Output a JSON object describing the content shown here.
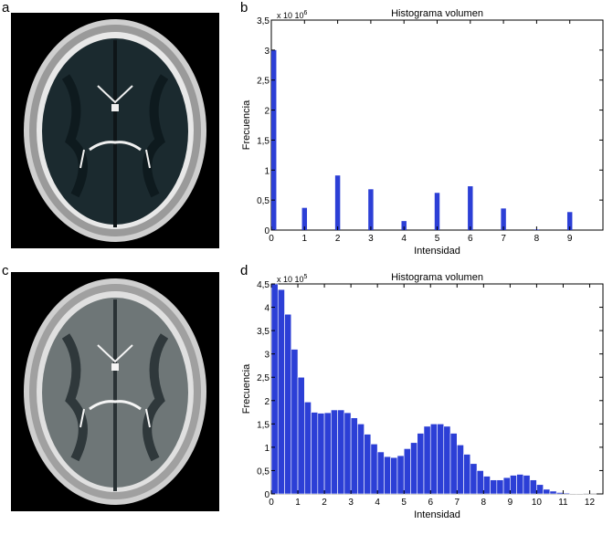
{
  "panels": {
    "a": "a",
    "b": "b",
    "c": "c",
    "d": "d"
  },
  "colors": {
    "bar": "#2c3fd6",
    "background": "#000000",
    "skull": "#bfbfbf",
    "tissue_segmented": "#1b2a2f",
    "tissue_noisy": "#6e7677"
  },
  "chart_data": [
    {
      "type": "bar",
      "title": "Histograma volumen",
      "xlabel": "Intensidad",
      "ylabel": "Frecuencia",
      "scale_note": "x 10^6",
      "xlim": [
        0,
        10
      ],
      "ylim": [
        0,
        3.5
      ],
      "x_ticks": [
        "0",
        "1",
        "2",
        "3",
        "4",
        "5",
        "6",
        "7",
        "8",
        "9"
      ],
      "y_ticks": [
        "0",
        "0,5",
        "1",
        "1,5",
        "2",
        "2,5",
        "3",
        "3,5"
      ],
      "x": [
        0,
        1,
        2,
        3,
        4,
        5,
        6,
        7,
        8,
        9
      ],
      "values": [
        3.0,
        0.37,
        0.91,
        0.68,
        0.15,
        0.62,
        0.73,
        0.36,
        0.01,
        0.3
      ],
      "grid": false
    },
    {
      "type": "bar",
      "title": "Histograma volumen",
      "xlabel": "Intensidad",
      "ylabel": "Frecuencia",
      "scale_note": "x 10^5",
      "xlim": [
        0,
        12.5
      ],
      "ylim": [
        0,
        4.5
      ],
      "x_ticks": [
        "0",
        "1",
        "2",
        "3",
        "4",
        "5",
        "6",
        "7",
        "8",
        "9",
        "10",
        "11",
        "12"
      ],
      "y_ticks": [
        "0",
        "0,5",
        "1",
        "1,5",
        "2",
        "2,5",
        "3",
        "3,5",
        "4",
        "4,5"
      ],
      "x": [
        0.0,
        0.25,
        0.5,
        0.75,
        1.0,
        1.25,
        1.5,
        1.75,
        2.0,
        2.25,
        2.5,
        2.75,
        3.0,
        3.25,
        3.5,
        3.75,
        4.0,
        4.25,
        4.5,
        4.75,
        5.0,
        5.25,
        5.5,
        5.75,
        6.0,
        6.25,
        6.5,
        6.75,
        7.0,
        7.25,
        7.5,
        7.75,
        8.0,
        8.25,
        8.5,
        8.75,
        9.0,
        9.25,
        9.5,
        9.75,
        10.0,
        10.25,
        10.5,
        10.75,
        11.0,
        11.25,
        11.5,
        11.75,
        12.0
      ],
      "values": [
        4.5,
        4.38,
        3.85,
        3.1,
        2.5,
        1.97,
        1.75,
        1.73,
        1.74,
        1.8,
        1.8,
        1.74,
        1.63,
        1.5,
        1.28,
        1.07,
        0.9,
        0.8,
        0.78,
        0.82,
        0.97,
        1.1,
        1.3,
        1.45,
        1.5,
        1.5,
        1.45,
        1.3,
        1.05,
        0.85,
        0.65,
        0.5,
        0.38,
        0.3,
        0.3,
        0.35,
        0.4,
        0.42,
        0.4,
        0.3,
        0.2,
        0.1,
        0.06,
        0.03,
        0.02,
        0.01,
        0.005,
        0.002,
        0.001
      ],
      "grid": false
    }
  ]
}
